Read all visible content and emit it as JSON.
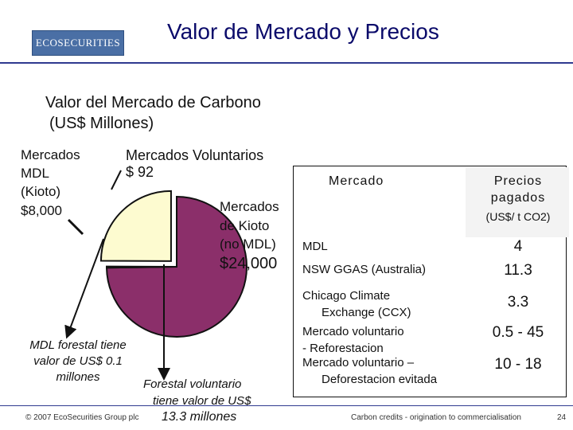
{
  "header": {
    "logo_text": "ECOSECURITIES",
    "title": "Valor de Mercado y Precios"
  },
  "subtitle": {
    "line1": "Valor del Mercado de Carbono",
    "line2": "(US$ Millones)"
  },
  "pie": {
    "voluntary_label": "Mercados Voluntarios",
    "voluntary_value": "$ 92",
    "kyoto_mdl_label_lines": [
      "Mercados",
      "MDL",
      "(Kioto)"
    ],
    "kyoto_mdl_value": "$8,000",
    "kyoto_nomdl_label_lines": [
      "Mercados",
      "de Kioto",
      "(no MDL)"
    ],
    "kyoto_nomdl_value": "$24,000",
    "colors": {
      "mdl": "#fdfbd0",
      "no_mdl": "#8b2f6a",
      "outline": "#111111"
    }
  },
  "annotations": {
    "forestal_mdl": "MDL forestal tiene valor de US$ 0.1 millones",
    "forestal_vol_line1": "Forestal voluntario",
    "forestal_vol_line2": "tiene valor de US$",
    "forestal_vol_value": "13.3 millones"
  },
  "prices_table": {
    "header_market": "Mercado",
    "header_price_line1": "Precios",
    "header_price_line2": "pagados",
    "header_price_unit": "(US$/ t CO2)",
    "rows": [
      {
        "market": [
          "MDL"
        ],
        "price": "4"
      },
      {
        "market": [
          "NSW GGAS (Australia)"
        ],
        "price": "11.3"
      },
      {
        "market": [
          "Chicago Climate",
          "Exchange (CCX)"
        ],
        "price": "3.3"
      },
      {
        "market": [
          "Mercado voluntario",
          "- Reforestacion"
        ],
        "price": "0.5 - 45"
      },
      {
        "market": [
          "Mercado voluntario –",
          "Deforestacion evitada"
        ],
        "price": "10 - 18"
      }
    ]
  },
  "footer": {
    "left": "© 2007 EcoSecurities Group plc",
    "center": "Carbon credits - origination to commercialisation",
    "page_number": "24"
  },
  "chart_data": {
    "type": "pie",
    "title": "Valor del Mercado de Carbono (US$ Millones)",
    "categories": [
      "Mercados MDL (Kioto)",
      "Mercados de Kioto (no MDL)",
      "Mercados Voluntarios"
    ],
    "values": [
      8000,
      24000,
      92
    ]
  }
}
